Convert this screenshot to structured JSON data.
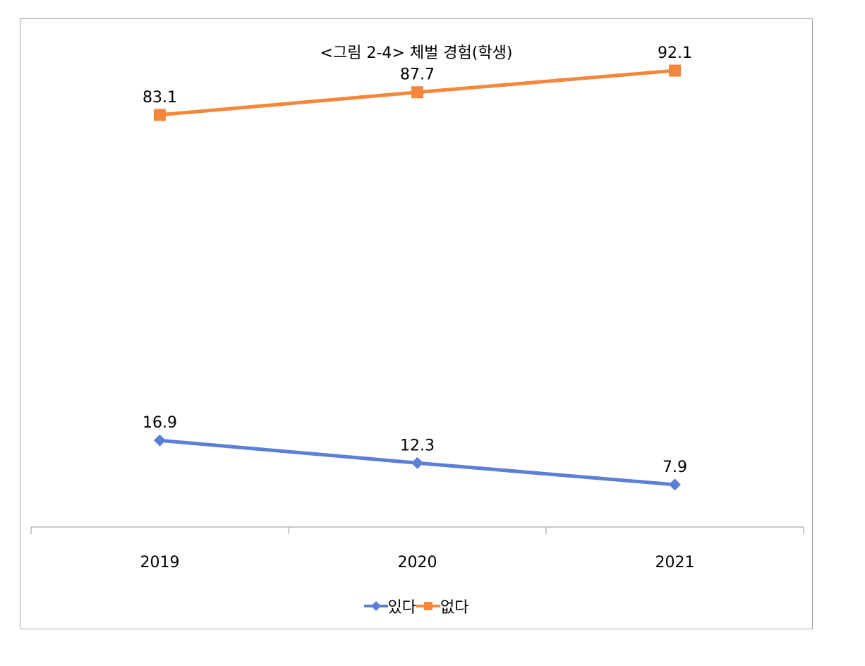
{
  "chart_data": {
    "type": "line",
    "title": "<그림 2-4> 체벌 경험(학생)",
    "categories": [
      "2019",
      "2020",
      "2021"
    ],
    "ylim": [
      0,
      100
    ],
    "grid": false,
    "legend_position": "bottom",
    "series": [
      {
        "name": "있다",
        "values": [
          16.9,
          12.3,
          7.9
        ],
        "color": "#5b7fd6",
        "marker": "diamond"
      },
      {
        "name": "없다",
        "values": [
          83.1,
          87.7,
          92.1
        ],
        "color": "#f5873a",
        "marker": "square"
      }
    ],
    "data_labels": true
  }
}
